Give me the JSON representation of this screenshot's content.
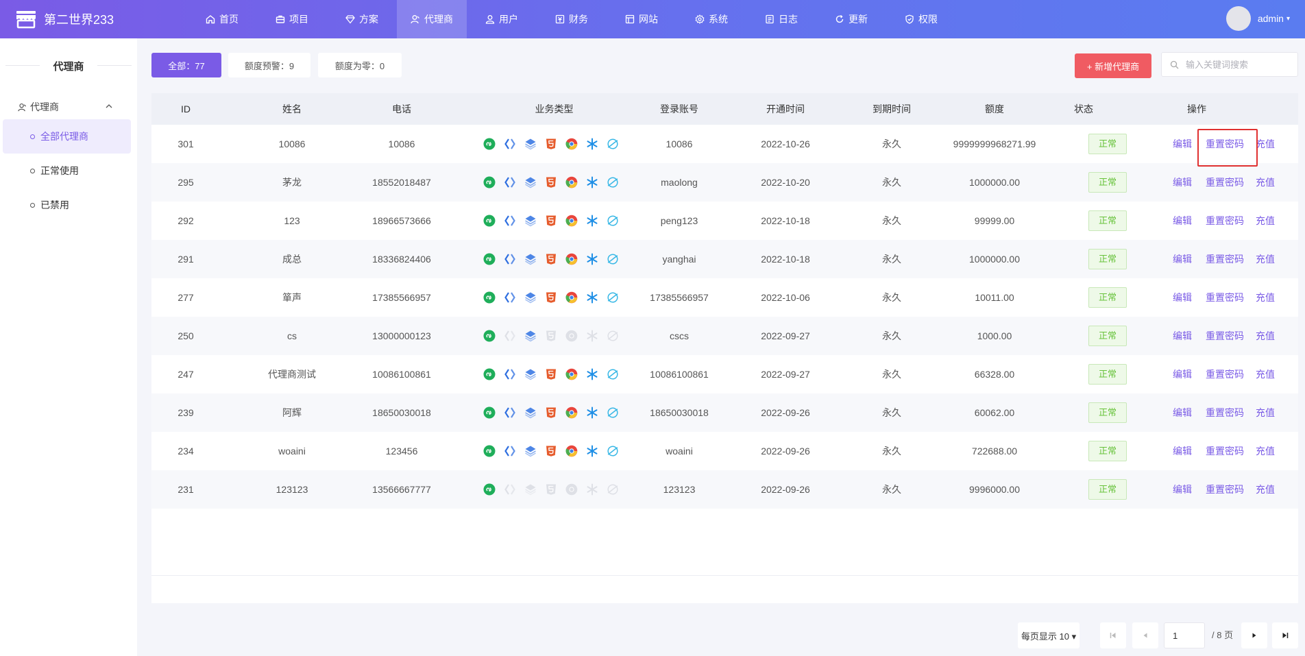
{
  "app": {
    "title": "第二世界233"
  },
  "nav": {
    "items": [
      {
        "label": "首页",
        "icon": "home-icon"
      },
      {
        "label": "项目",
        "icon": "briefcase-icon"
      },
      {
        "label": "方案",
        "icon": "diamond-icon"
      },
      {
        "label": "代理商",
        "icon": "agent-icon"
      },
      {
        "label": "用户",
        "icon": "users-icon"
      },
      {
        "label": "财务",
        "icon": "finance-icon"
      },
      {
        "label": "网站",
        "icon": "website-icon"
      },
      {
        "label": "系统",
        "icon": "gear-icon"
      },
      {
        "label": "日志",
        "icon": "log-icon"
      },
      {
        "label": "更新",
        "icon": "refresh-icon"
      },
      {
        "label": "权限",
        "icon": "shield-icon"
      }
    ],
    "active": "代理商"
  },
  "user": {
    "name": "admin",
    "caret": "▾"
  },
  "sidebar": {
    "title": "代理商",
    "group": "代理商",
    "items": [
      {
        "label": "全部代理商",
        "active": true
      },
      {
        "label": "正常使用",
        "active": false
      },
      {
        "label": "已禁用",
        "active": false
      }
    ]
  },
  "filters": {
    "all": "全部：77",
    "warning": "额度预警：9",
    "zero": "额度为零：0"
  },
  "toolbar": {
    "add_label": "+ 新增代理商",
    "search_placeholder": "输入关键词搜索"
  },
  "table": {
    "columns": [
      "ID",
      "姓名",
      "电话",
      "业务类型",
      "登录账号",
      "开通时间",
      "到期时间",
      "额度",
      "状态",
      "操作"
    ],
    "business_icons": [
      "mini-program-icon",
      "code-icon",
      "layers-icon",
      "html5-icon",
      "chrome-icon",
      "snowflake-icon",
      "planet-icon"
    ],
    "actions": {
      "edit": "编辑",
      "reset": "重置密码",
      "recharge": "充值"
    },
    "rows": [
      {
        "id": "301",
        "name": "10086",
        "phone": "10086",
        "account": "10086",
        "open": "2022-10-26",
        "expire": "永久",
        "quota": "9999999968271.99",
        "status": "正常",
        "biz_enabled": [
          true,
          true,
          true,
          true,
          true,
          true,
          true
        ]
      },
      {
        "id": "295",
        "name": "茅龙",
        "phone": "18552018487",
        "account": "maolong",
        "open": "2022-10-20",
        "expire": "永久",
        "quota": "1000000.00",
        "status": "正常",
        "biz_enabled": [
          true,
          true,
          true,
          true,
          true,
          true,
          true
        ]
      },
      {
        "id": "292",
        "name": "123",
        "phone": "18966573666",
        "account": "peng123",
        "open": "2022-10-18",
        "expire": "永久",
        "quota": "99999.00",
        "status": "正常",
        "biz_enabled": [
          true,
          true,
          true,
          true,
          true,
          true,
          true
        ]
      },
      {
        "id": "291",
        "name": "成总",
        "phone": "18336824406",
        "account": "yanghai",
        "open": "2022-10-18",
        "expire": "永久",
        "quota": "1000000.00",
        "status": "正常",
        "biz_enabled": [
          true,
          true,
          true,
          true,
          true,
          true,
          true
        ]
      },
      {
        "id": "277",
        "name": "箪声",
        "phone": "17385566957",
        "account": "17385566957",
        "open": "2022-10-06",
        "expire": "永久",
        "quota": "10011.00",
        "status": "正常",
        "biz_enabled": [
          true,
          true,
          true,
          true,
          true,
          true,
          true
        ]
      },
      {
        "id": "250",
        "name": "cs",
        "phone": "13000000123",
        "account": "cscs",
        "open": "2022-09-27",
        "expire": "永久",
        "quota": "1000.00",
        "status": "正常",
        "biz_enabled": [
          true,
          false,
          true,
          false,
          false,
          false,
          false
        ]
      },
      {
        "id": "247",
        "name": "代理商测试",
        "phone": "10086100861",
        "account": "10086100861",
        "open": "2022-09-27",
        "expire": "永久",
        "quota": "66328.00",
        "status": "正常",
        "biz_enabled": [
          true,
          true,
          true,
          true,
          true,
          true,
          true
        ]
      },
      {
        "id": "239",
        "name": "阿辉",
        "phone": "18650030018",
        "account": "18650030018",
        "open": "2022-09-26",
        "expire": "永久",
        "quota": "60062.00",
        "status": "正常",
        "biz_enabled": [
          true,
          true,
          true,
          true,
          true,
          true,
          true
        ]
      },
      {
        "id": "234",
        "name": "woaini",
        "phone": "123456",
        "account": "woaini",
        "open": "2022-09-26",
        "expire": "永久",
        "quota": "722688.00",
        "status": "正常",
        "biz_enabled": [
          true,
          true,
          true,
          true,
          true,
          true,
          true
        ]
      },
      {
        "id": "231",
        "name": "123123",
        "phone": "13566667777",
        "account": "123123",
        "open": "2022-09-26",
        "expire": "永久",
        "quota": "9996000.00",
        "status": "正常",
        "biz_enabled": [
          true,
          false,
          false,
          false,
          false,
          false,
          false
        ]
      }
    ]
  },
  "pagination": {
    "page_size_label": "每页显示 10 ▾",
    "current_page": "1",
    "total_label": "/ 8 页"
  },
  "colors": {
    "accent": "#7a5be6",
    "danger": "#f05b62",
    "status_ok": "#67c23a",
    "highlight": "#e03030"
  }
}
